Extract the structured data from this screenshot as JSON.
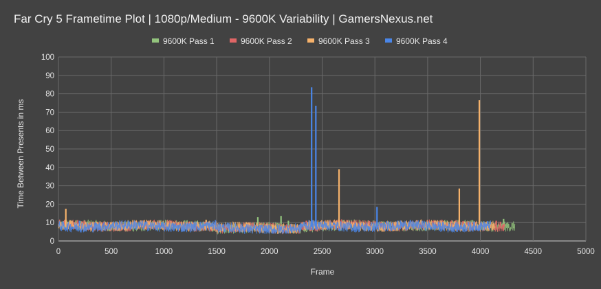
{
  "chart_data": {
    "type": "line",
    "title": "Far Cry 5 Frametime Plot | 1080p/Medium - 9600K Variability | GamersNexus.net",
    "xlabel": "Frame",
    "ylabel": "Time Between Presents in ms",
    "xlim": [
      0,
      5000
    ],
    "ylim": [
      0,
      100
    ],
    "x_ticks": [
      0,
      500,
      1000,
      1500,
      2000,
      2500,
      3000,
      3500,
      4000,
      4500,
      5000
    ],
    "y_ticks": [
      0,
      10,
      20,
      30,
      40,
      50,
      60,
      70,
      80,
      90,
      100
    ],
    "grid": true,
    "legend_position": "top",
    "series": [
      {
        "name": "9600K Pass 1",
        "color": "#93c47d",
        "frames": 4330,
        "base_ms": 8.3,
        "spikes": [
          [
            1890,
            13
          ],
          [
            2110,
            13.5
          ],
          [
            2180,
            11
          ],
          [
            4220,
            12
          ]
        ]
      },
      {
        "name": "9600K Pass 2",
        "color": "#e06666",
        "frames": 4230,
        "base_ms": 8.3,
        "spikes": [
          [
            60,
            11.5
          ],
          [
            2350,
            11
          ],
          [
            4150,
            11
          ]
        ]
      },
      {
        "name": "9600K Pass 3",
        "color": "#f6b26b",
        "frames": 4140,
        "base_ms": 8.3,
        "spikes": [
          [
            70,
            17.5
          ],
          [
            2660,
            39
          ],
          [
            3800,
            28.5
          ],
          [
            3990,
            76.5
          ],
          [
            1400,
            11.5
          ]
        ]
      },
      {
        "name": "9600K Pass 4",
        "color": "#4a86e8",
        "frames": 4100,
        "base_ms": 8.0,
        "spikes": [
          [
            2400,
            83.5
          ],
          [
            2440,
            73.5
          ],
          [
            3020,
            18.5
          ],
          [
            200,
            11
          ]
        ]
      }
    ]
  }
}
